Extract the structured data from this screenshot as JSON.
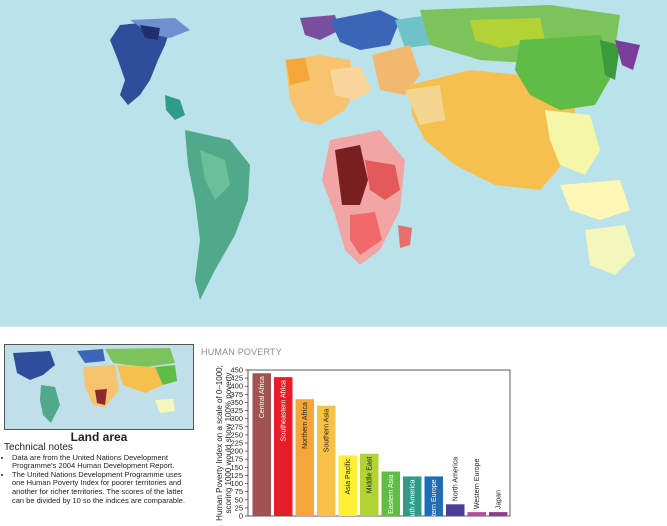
{
  "chart_title": "HUMAN POVERTY",
  "land_area_label": "Land area",
  "notes": {
    "title": "Technical notes",
    "items": [
      "Data are from the United Nations Development Programme's 2004 Human Development Report.",
      "The United Nations Development Programme uses one Human Poverty Index for poorer territories and another for richer territories. The scores of the latter can be divided by 10 so the indices are comparable."
    ]
  },
  "chart_data": {
    "type": "bar",
    "title": "HUMAN POVERTY",
    "ylabel": "Human Poverty Index on a scale of 0–1000; scoring 1000 would show 100% poverty",
    "ylim": [
      0,
      450
    ],
    "yticks": [
      0,
      25,
      50,
      75,
      100,
      125,
      150,
      175,
      200,
      225,
      250,
      275,
      300,
      325,
      350,
      375,
      400,
      425,
      450
    ],
    "grid": false,
    "categories": [
      "Central Africa",
      "Southeastern Africa",
      "Northern Africa",
      "Southern Asia",
      "Asia Pacific",
      "Middle East",
      "Eastern Asia",
      "South America",
      "Eastern Europe",
      "North America",
      "Western Europe",
      "Japan"
    ],
    "values": [
      440,
      428,
      360,
      340,
      187,
      192,
      137,
      122,
      122,
      36,
      12,
      12
    ],
    "colors": [
      "#a35252",
      "#e41e26",
      "#f4a738",
      "#f7c246",
      "#fff035",
      "#b3d335",
      "#5fbc45",
      "#2f9c8a",
      "#1f6db4",
      "#4d3d98",
      "#b14d9b",
      "#8e3b8e"
    ]
  }
}
